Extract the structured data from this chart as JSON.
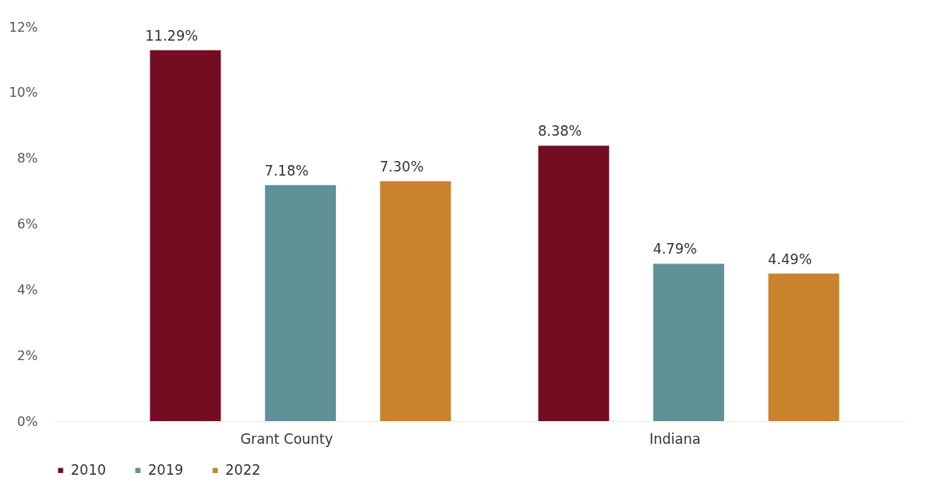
{
  "chart_data": {
    "type": "bar",
    "categories": [
      "Grant County",
      "Indiana"
    ],
    "series": [
      {
        "name": "2010",
        "color": "#740d22",
        "values": [
          11.29,
          8.38
        ],
        "value_labels": [
          "11.29%",
          "8.38%"
        ]
      },
      {
        "name": "2019",
        "color": "#5f9196",
        "values": [
          7.18,
          4.79
        ],
        "value_labels": [
          "7.18%",
          "4.79%"
        ]
      },
      {
        "name": "2022",
        "color": "#c9832c",
        "values": [
          7.3,
          4.49
        ],
        "value_labels": [
          "7.30%",
          "4.49%"
        ]
      }
    ],
    "ylim": [
      0,
      12
    ],
    "yticks": [
      {
        "value": 0,
        "label": "0%"
      },
      {
        "value": 2,
        "label": "2%"
      },
      {
        "value": 4,
        "label": "4%"
      },
      {
        "value": 6,
        "label": "6%"
      },
      {
        "value": 8,
        "label": "8%"
      },
      {
        "value": 10,
        "label": "10%"
      },
      {
        "value": 12,
        "label": "12%"
      }
    ],
    "grid": false,
    "legend": "bottom"
  }
}
